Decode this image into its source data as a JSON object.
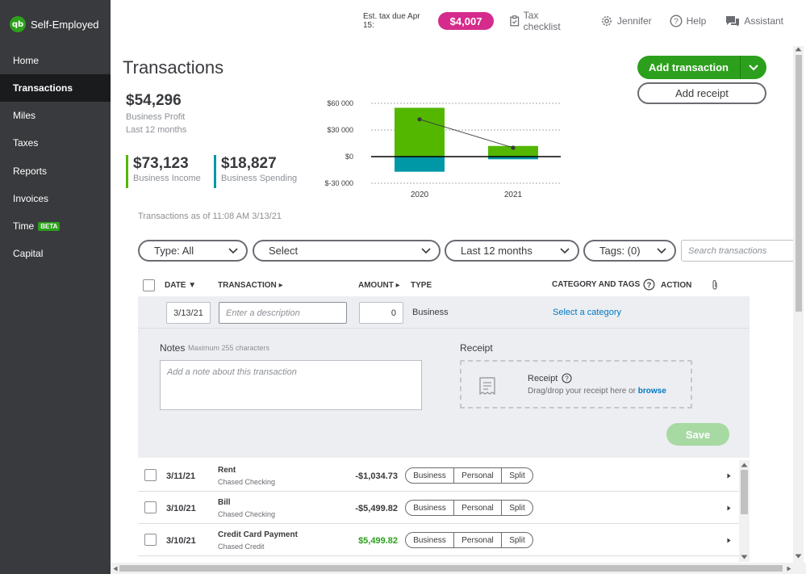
{
  "brand": {
    "name": "Self-Employed",
    "logo": "qb"
  },
  "nav": {
    "items": [
      {
        "label": "Home"
      },
      {
        "label": "Transactions",
        "active": true
      },
      {
        "label": "Miles"
      },
      {
        "label": "Taxes"
      },
      {
        "label": "Reports"
      },
      {
        "label": "Invoices"
      },
      {
        "label": "Time",
        "badge": "BETA"
      },
      {
        "label": "Capital"
      }
    ]
  },
  "header": {
    "tax_label": "Est. tax due Apr 15:",
    "tax_amount": "$4,007",
    "tax_checklist": "Tax checklist",
    "user": "Jennifer",
    "help": "Help",
    "assistant": "Assistant"
  },
  "page": {
    "title": "Transactions",
    "add_transaction": "Add transaction",
    "add_receipt": "Add receipt"
  },
  "summary": {
    "profit_value": "$54,296",
    "profit_label": "Business Profit",
    "profit_period": "Last 12 months",
    "income_value": "$73,123",
    "income_label": "Business Income",
    "spending_value": "$18,827",
    "spending_label": "Business Spending",
    "as_of": "Transactions as of 11:08 AM 3/13/21"
  },
  "chart_data": {
    "type": "bar",
    "categories": [
      "2020",
      "2021"
    ],
    "series": [
      {
        "values": [
          55000,
          12000
        ],
        "color": "#53b700"
      },
      {
        "values": [
          -17000,
          -3000
        ],
        "color": "#0097a7"
      }
    ],
    "line": [
      42000,
      10000
    ],
    "yticks": [
      "$60 000",
      "$30 000",
      "$0",
      "$-30 000"
    ],
    "ylim": [
      -30000,
      60000
    ],
    "grid": true
  },
  "filters": {
    "type": "Type: All",
    "select": "Select",
    "period": "Last 12 months",
    "tags": "Tags: (0)",
    "search_placeholder": "Search transactions"
  },
  "table": {
    "headers": {
      "date": "DATE",
      "transaction": "TRANSACTION",
      "amount": "AMOUNT",
      "type": "TYPE",
      "category": "CATEGORY AND TAGS",
      "action": "ACTION"
    },
    "new_row": {
      "date": "3/13/21",
      "description_placeholder": "Enter a description",
      "amount": "0",
      "type": "Business",
      "category_link": "Select a category",
      "notes_label": "Notes",
      "notes_hint": "Maximum 255 characters",
      "notes_placeholder": "Add a note about this transaction",
      "receipt_label": "Receipt",
      "receipt_title": "Receipt",
      "receipt_hint": "Drag/drop your receipt here or",
      "receipt_browse": "browse",
      "save": "Save"
    },
    "rows": [
      {
        "date": "3/11/21",
        "name": "Rent",
        "account": "Chased Checking",
        "amount": "-$1,034.73",
        "positive": false
      },
      {
        "date": "3/10/21",
        "name": "Bill",
        "account": "Chased Checking",
        "amount": "-$5,499.82",
        "positive": false
      },
      {
        "date": "3/10/21",
        "name": "Credit Card Payment",
        "account": "Chased Credit",
        "amount": "$5,499.82",
        "positive": true
      }
    ],
    "segment_labels": [
      "Business",
      "Personal",
      "Split"
    ]
  },
  "colors": {
    "brand_green": "#2ca01c",
    "tax_pink": "#d52b8c",
    "sidebar": "#393a3d",
    "income": "#53b700",
    "spending": "#0097a7",
    "link": "#0077c5"
  }
}
